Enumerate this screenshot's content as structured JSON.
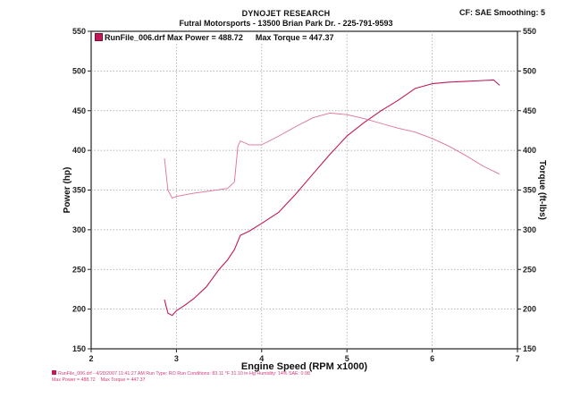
{
  "header": {
    "title": "DYNOJET RESEARCH",
    "subtitle": "Futral Motorsports - 13500  Brian  Park Dr. - 225-791-9593",
    "cf_smoothing": "CF: SAE  Smoothing: 5"
  },
  "legend": {
    "run_label": "RunFile_006.drf Max Power = 488.72",
    "torque_label": "Max Torque = 447.37"
  },
  "footer": {
    "line1": "RunFile_006.drf - 4/20/2007 11:41:27 AM  Run Type: RO  Run Conditions: 83.11 °F  31.10 in-Hg  Humidity: 14%  SAE: 0.98",
    "line2_power": "Max Power = 488.72",
    "line2_torque": "Max Torque = 447.37"
  },
  "colors": {
    "power": "#c0175a",
    "torque": "#de6f9a",
    "grid": "#9e9e9e",
    "axis": "#222222"
  },
  "chart_data": {
    "type": "line",
    "xlabel": "Engine Speed (RPM x1000)",
    "ylabel_left": "Power (hp)",
    "ylabel_right": "Torque (ft-lbs)",
    "xlim": [
      2,
      7
    ],
    "ylim": [
      150,
      550
    ],
    "x_ticks": [
      "2",
      "3",
      "4",
      "5",
      "6",
      "7"
    ],
    "y_ticks": [
      "150",
      "200",
      "250",
      "300",
      "350",
      "400",
      "450",
      "500",
      "550"
    ],
    "grid": true,
    "legend_position": "top-left",
    "series": [
      {
        "name": "Power",
        "points": [
          [
            2.86,
            212
          ],
          [
            2.9,
            195
          ],
          [
            2.95,
            192
          ],
          [
            3.0,
            198
          ],
          [
            3.1,
            205
          ],
          [
            3.2,
            213
          ],
          [
            3.35,
            228
          ],
          [
            3.5,
            250
          ],
          [
            3.6,
            262
          ],
          [
            3.68,
            275
          ],
          [
            3.75,
            293
          ],
          [
            3.85,
            298
          ],
          [
            4.0,
            308
          ],
          [
            4.2,
            322
          ],
          [
            4.4,
            345
          ],
          [
            4.6,
            370
          ],
          [
            4.8,
            395
          ],
          [
            5.0,
            418
          ],
          [
            5.2,
            435
          ],
          [
            5.4,
            450
          ],
          [
            5.6,
            463
          ],
          [
            5.8,
            478
          ],
          [
            6.0,
            484
          ],
          [
            6.2,
            486
          ],
          [
            6.4,
            487
          ],
          [
            6.6,
            488
          ],
          [
            6.72,
            488.7
          ],
          [
            6.79,
            482
          ]
        ]
      },
      {
        "name": "Torque",
        "points": [
          [
            2.86,
            390
          ],
          [
            2.9,
            350
          ],
          [
            2.95,
            340
          ],
          [
            3.0,
            342
          ],
          [
            3.2,
            346
          ],
          [
            3.4,
            349
          ],
          [
            3.6,
            352
          ],
          [
            3.68,
            360
          ],
          [
            3.72,
            405
          ],
          [
            3.75,
            412
          ],
          [
            3.85,
            407
          ],
          [
            4.0,
            407
          ],
          [
            4.2,
            418
          ],
          [
            4.4,
            430
          ],
          [
            4.6,
            441
          ],
          [
            4.8,
            447
          ],
          [
            5.0,
            445
          ],
          [
            5.2,
            440
          ],
          [
            5.4,
            434
          ],
          [
            5.6,
            428
          ],
          [
            5.8,
            423
          ],
          [
            6.0,
            415
          ],
          [
            6.2,
            405
          ],
          [
            6.4,
            393
          ],
          [
            6.6,
            380
          ],
          [
            6.79,
            370
          ]
        ]
      }
    ]
  }
}
